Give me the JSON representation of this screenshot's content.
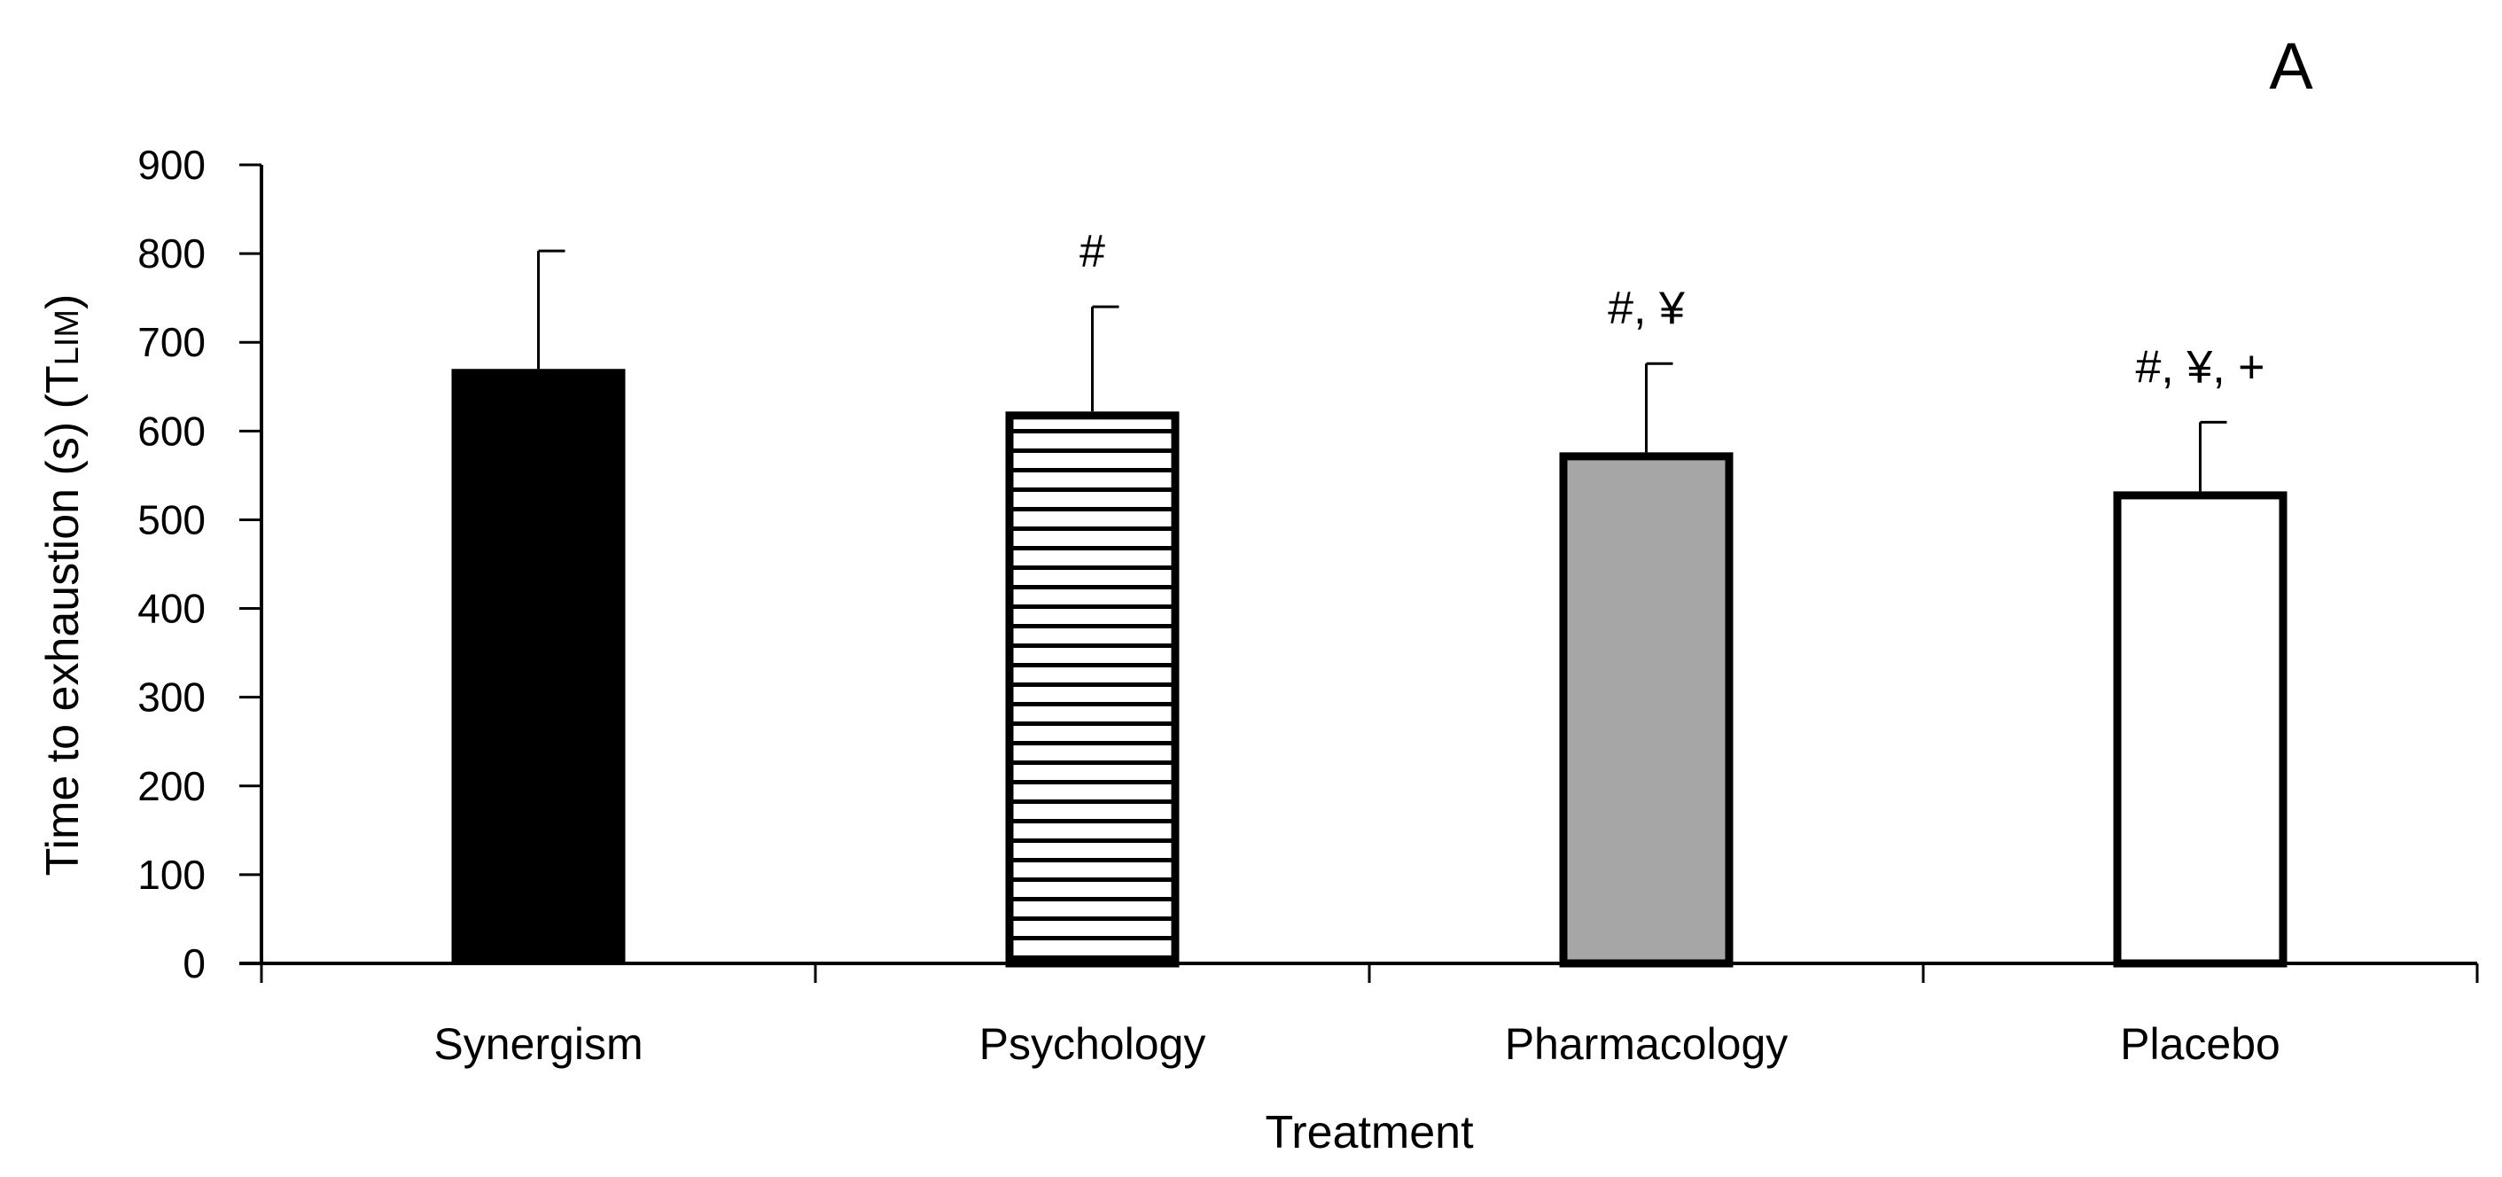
{
  "chart_data": {
    "type": "bar",
    "panel_label": "A",
    "categories": [
      "Synergism",
      "Psychology",
      "Pharmacology",
      "Placebo"
    ],
    "values": [
      670,
      622,
      576,
      532
    ],
    "errors": [
      133,
      118,
      100,
      78
    ],
    "annotations": [
      "",
      "#",
      "#, ¥",
      "#, ¥, +"
    ],
    "fills": [
      "solid-black",
      "horizontal-stripes",
      "gray",
      "white"
    ],
    "colors": {
      "black": "#000000",
      "gray": "#a6a6a6",
      "white": "#ffffff"
    },
    "xlabel": "Treatment",
    "ylabel": "Time to exhaustion (s) (T",
    "ylabel_subscript": "LIM",
    "ylabel_suffix": ")",
    "ylim": [
      0,
      900
    ],
    "yticks": [
      0,
      100,
      200,
      300,
      400,
      500,
      600,
      700,
      800,
      900
    ],
    "grid": false,
    "legend": "none"
  }
}
